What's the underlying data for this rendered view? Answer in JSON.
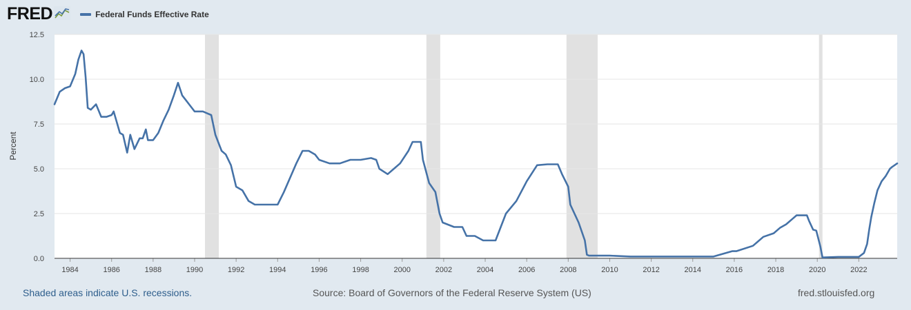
{
  "header": {
    "logo_text": "FRED",
    "logo_icon": "chart-line-icon"
  },
  "colors": {
    "background": "#e1e9f0",
    "plot_background": "#ffffff",
    "series": "#4572a7",
    "recession": "#e1e1e1",
    "link": "#2e5e8c"
  },
  "footer": {
    "recession_note": "Shaded areas indicate U.S. recessions.",
    "source": "Source: Board of Governors of the Federal Reserve System (US)",
    "website": "fred.stlouisfed.org"
  },
  "chart_data": {
    "type": "line",
    "title": "",
    "xlabel": "",
    "ylabel": "Percent",
    "xlim": [
      1983.25,
      2023.85
    ],
    "ylim": [
      0,
      12.5
    ],
    "grid": true,
    "legend_position": "top-left",
    "yticks": [
      "0.0",
      "2.5",
      "5.0",
      "7.5",
      "10.0",
      "12.5"
    ],
    "xticks": [
      "1984",
      "1986",
      "1988",
      "1990",
      "1992",
      "1994",
      "1996",
      "1998",
      "2000",
      "2002",
      "2004",
      "2006",
      "2008",
      "2010",
      "2012",
      "2014",
      "2016",
      "2018",
      "2020",
      "2022"
    ],
    "recessions": [
      [
        "1990-07",
        "1991-03"
      ],
      [
        "2001-03",
        "2001-11"
      ],
      [
        "2007-12",
        "2009-06"
      ],
      [
        "2020-02",
        "2020-04"
      ]
    ],
    "series": [
      {
        "name": "Federal Funds Effective Rate",
        "x": [
          1983.25,
          1983.5,
          1983.75,
          1984.0,
          1984.25,
          1984.4,
          1984.55,
          1984.65,
          1984.75,
          1984.85,
          1985.0,
          1985.25,
          1985.5,
          1985.75,
          1986.0,
          1986.1,
          1986.4,
          1986.55,
          1986.75,
          1986.9,
          1987.1,
          1987.35,
          1987.5,
          1987.65,
          1987.75,
          1988.0,
          1988.25,
          1988.5,
          1988.75,
          1989.0,
          1989.2,
          1989.4,
          1989.6,
          1989.8,
          1990.0,
          1990.2,
          1990.4,
          1990.6,
          1990.8,
          1991.0,
          1991.3,
          1991.5,
          1991.75,
          1992.0,
          1992.3,
          1992.6,
          1992.9,
          1993.5,
          1994.0,
          1994.3,
          1994.6,
          1994.9,
          1995.2,
          1995.5,
          1995.8,
          1996.0,
          1996.5,
          1997.0,
          1997.5,
          1998.0,
          1998.5,
          1998.75,
          1998.9,
          1999.3,
          1999.6,
          1999.9,
          2000.3,
          2000.5,
          2000.9,
          2001.0,
          2001.3,
          2001.6,
          2001.8,
          2001.95,
          2002.5,
          2002.9,
          2003.1,
          2003.5,
          2003.9,
          2004.5,
          2005.0,
          2005.5,
          2006.0,
          2006.5,
          2007.0,
          2007.5,
          2007.7,
          2008.0,
          2008.1,
          2008.3,
          2008.5,
          2008.8,
          2008.9,
          2009.0,
          2010.0,
          2011.0,
          2012.0,
          2013.0,
          2014.0,
          2015.0,
          2015.9,
          2016.1,
          2016.9,
          2017.1,
          2017.4,
          2017.9,
          2018.2,
          2018.5,
          2018.8,
          2019.0,
          2019.5,
          2019.6,
          2019.8,
          2019.95,
          2020.15,
          2020.25,
          2020.3,
          2021.0,
          2022.0,
          2022.25,
          2022.4,
          2022.5,
          2022.6,
          2022.75,
          2022.9,
          2023.1,
          2023.3,
          2023.5,
          2023.6,
          2023.85
        ],
        "values": [
          8.6,
          9.3,
          9.5,
          9.6,
          10.3,
          11.1,
          11.6,
          11.4,
          10.1,
          8.4,
          8.3,
          8.6,
          7.9,
          7.9,
          8.0,
          8.2,
          7.0,
          6.9,
          5.9,
          6.9,
          6.1,
          6.7,
          6.7,
          7.2,
          6.6,
          6.6,
          7.0,
          7.7,
          8.3,
          9.1,
          9.8,
          9.1,
          8.8,
          8.5,
          8.2,
          8.2,
          8.2,
          8.1,
          8.0,
          6.9,
          6.0,
          5.8,
          5.2,
          4.0,
          3.8,
          3.2,
          3.0,
          3.0,
          3.0,
          3.7,
          4.5,
          5.3,
          6.0,
          6.0,
          5.8,
          5.5,
          5.3,
          5.3,
          5.5,
          5.5,
          5.6,
          5.5,
          5.0,
          4.7,
          5.0,
          5.3,
          6.0,
          6.5,
          6.5,
          5.5,
          4.2,
          3.7,
          2.5,
          2.0,
          1.75,
          1.75,
          1.25,
          1.25,
          1.0,
          1.0,
          2.5,
          3.2,
          4.3,
          5.2,
          5.25,
          5.25,
          4.7,
          4.0,
          3.0,
          2.5,
          2.0,
          1.0,
          0.2,
          0.15,
          0.15,
          0.1,
          0.1,
          0.1,
          0.1,
          0.1,
          0.4,
          0.4,
          0.7,
          0.9,
          1.2,
          1.4,
          1.7,
          1.9,
          2.2,
          2.4,
          2.4,
          2.1,
          1.6,
          1.55,
          0.65,
          0.05,
          0.05,
          0.08,
          0.08,
          0.3,
          0.8,
          1.6,
          2.3,
          3.1,
          3.8,
          4.3,
          4.6,
          5.0,
          5.1,
          5.3
        ]
      }
    ]
  }
}
